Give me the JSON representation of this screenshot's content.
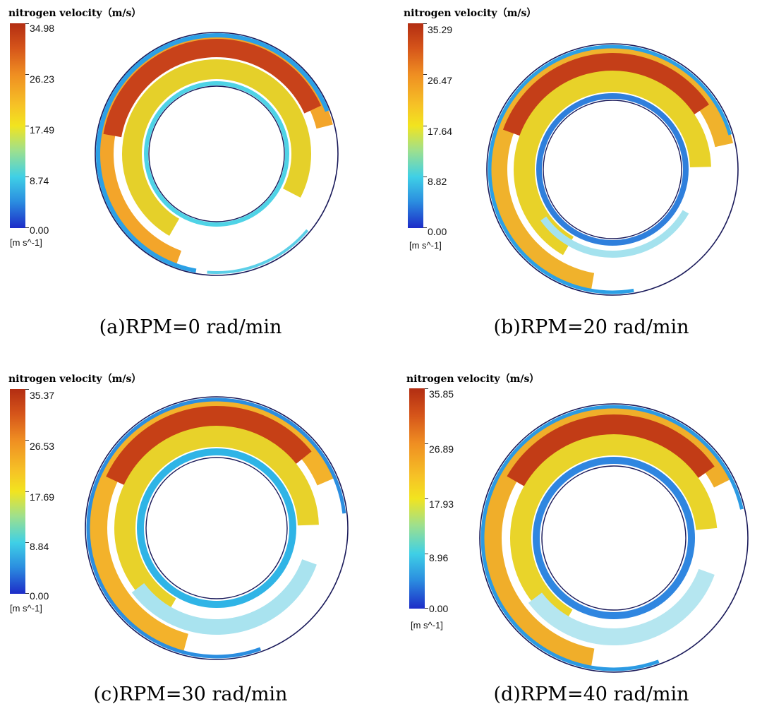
{
  "panels": [
    {
      "colorbar_title": "nitrogen velocity（m/s）",
      "ticks": [
        "34.98",
        "26.23",
        "17.49",
        "8.74",
        "0.00"
      ],
      "unit": "[m s^-1]",
      "caption": "(a)RPM=0 rad/min"
    },
    {
      "colorbar_title": "nitrogen velocity（m/s）",
      "ticks": [
        "35.29",
        "26.47",
        "17.64",
        "8.82",
        "0.00"
      ],
      "unit": "[m s^-1]",
      "caption": "(b)RPM=20 rad/min"
    },
    {
      "colorbar_title": "nitrogen velocity（m/s）",
      "ticks": [
        "35.37",
        "26.53",
        "17.69",
        "8.84",
        "0.00"
      ],
      "unit": "[m s^-1]",
      "caption": "(c)RPM=30 rad/min"
    },
    {
      "colorbar_title": "nitrogen velocity（m/s）",
      "ticks": [
        "35.85",
        "26.89",
        "17.93",
        "8.96",
        "0.00"
      ],
      "unit": "[m s^-1]",
      "caption": "(d)RPM=40 rad/min"
    }
  ],
  "colors": {
    "max": "#b22d12",
    "high": "#ef8e22",
    "mid": "#f2e41f",
    "low": "#3fd0e6",
    "min": "#1d2cc8"
  }
}
